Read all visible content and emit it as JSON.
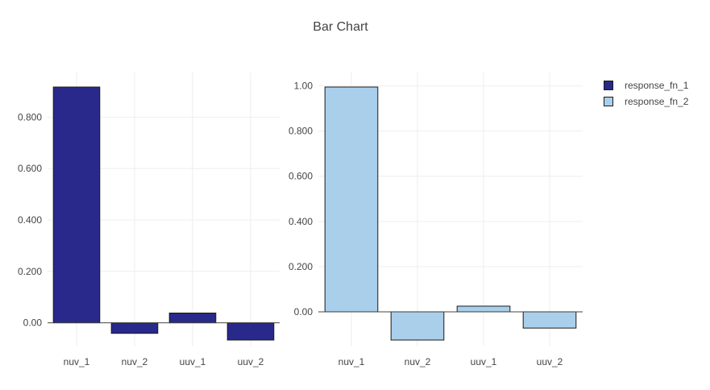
{
  "title": "Bar Chart",
  "legend": [
    {
      "label": "response_fn_1",
      "color": "#28298a"
    },
    {
      "label": "response_fn_2",
      "color": "#a9cfeb"
    }
  ],
  "chart_data": [
    {
      "type": "bar",
      "categories": [
        "nuv_1",
        "nuv_2",
        "uuv_1",
        "uuv_2"
      ],
      "series": [
        {
          "name": "response_fn_1",
          "color": "#28298a",
          "values": [
            0.917,
            -0.041,
            0.038,
            -0.067
          ]
        }
      ],
      "ylim": [
        -0.067,
        0.917
      ],
      "yticks": [
        0,
        0.2,
        0.4,
        0.6,
        0.8
      ],
      "ytick_labels": [
        "0.00",
        "0.200",
        "0.400",
        "0.600",
        "0.800"
      ],
      "grid": true
    },
    {
      "type": "bar",
      "categories": [
        "nuv_1",
        "nuv_2",
        "uuv_1",
        "uuv_2"
      ],
      "series": [
        {
          "name": "response_fn_2",
          "color": "#a9cfeb",
          "values": [
            0.995,
            -0.125,
            0.025,
            -0.072
          ]
        }
      ],
      "ylim": [
        -0.125,
        0.995
      ],
      "yticks": [
        0,
        0.2,
        0.4,
        0.6,
        0.8,
        1.0
      ],
      "ytick_labels": [
        "0.00",
        "0.200",
        "0.400",
        "0.600",
        "0.800",
        "1.00"
      ],
      "grid": true
    }
  ]
}
